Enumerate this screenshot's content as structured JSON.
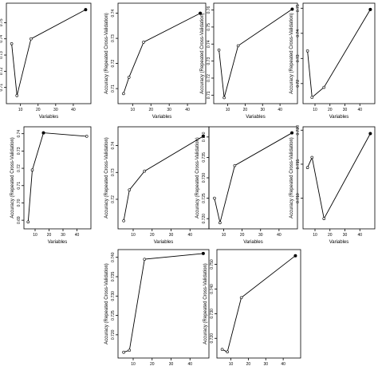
{
  "chart_data": [
    {
      "type": "line",
      "xlabel": "Variables",
      "ylabel": "Accuracy (Repeated Cross-Validation)",
      "x": [
        5,
        8,
        16,
        47
      ],
      "y": [
        0.737,
        0.705,
        0.74,
        0.758
      ],
      "best_index": 3,
      "xlim": [
        2,
        50
      ],
      "ylim": [
        0.7,
        0.762
      ],
      "xticks": [
        10,
        20,
        30,
        40
      ],
      "yticks": [
        0.71,
        0.72,
        0.73,
        0.74,
        0.75
      ]
    },
    {
      "type": "line",
      "xlabel": "Variables",
      "ylabel": "Accuracy (Repeated Cross-Validation)",
      "x": [
        5,
        8,
        16,
        47
      ],
      "y": [
        0.708,
        0.7145,
        0.7285,
        0.74
      ],
      "best_index": 3,
      "xlim": [
        2,
        50
      ],
      "ylim": [
        0.704,
        0.744
      ],
      "xticks": [
        10,
        20,
        30,
        40
      ],
      "yticks": [
        0.71,
        0.72,
        0.73,
        0.74
      ]
    },
    {
      "type": "line",
      "xlabel": "Variables",
      "ylabel": "Accuracy (Repeated Cross-Validation)",
      "x": [
        5,
        8,
        16,
        47
      ],
      "y": [
        0.7365,
        0.7085,
        0.739,
        0.7605
      ],
      "best_index": 3,
      "xlim": [
        2,
        50
      ],
      "ylim": [
        0.705,
        0.764
      ],
      "xticks": [
        10,
        20,
        30,
        40
      ],
      "yticks": [
        0.71,
        0.72,
        0.73,
        0.74,
        0.75,
        0.76
      ]
    },
    {
      "type": "line",
      "xlabel": "Variables",
      "ylabel": "Accuracy (Repeated Cross-Validation)",
      "x": [
        5,
        8,
        16,
        47
      ],
      "y": [
        0.733,
        0.7145,
        0.7185,
        0.7495
      ],
      "best_index": 3,
      "xlim": [
        2,
        50
      ],
      "ylim": [
        0.712,
        0.752
      ],
      "xticks": [
        10,
        20,
        30,
        40
      ],
      "yticks": [
        0.72,
        0.73,
        0.74,
        0.75
      ]
    },
    {
      "type": "line",
      "xlabel": "Variables",
      "ylabel": "Accuracy (Repeated Cross-Validation)",
      "x": [
        5,
        8,
        16,
        47
      ],
      "y": [
        0.689,
        0.719,
        0.7405,
        0.7385
      ],
      "best_index": 2,
      "xlim": [
        2,
        50
      ],
      "ylim": [
        0.685,
        0.744
      ],
      "xticks": [
        10,
        20,
        30,
        40
      ],
      "yticks": [
        0.69,
        0.7,
        0.71,
        0.72,
        0.73,
        0.74
      ]
    },
    {
      "type": "line",
      "xlabel": "Variables",
      "ylabel": "Accuracy (Repeated Cross-Validation)",
      "x": [
        5,
        8,
        16,
        47
      ],
      "y": [
        0.712,
        0.7235,
        0.7305,
        0.7435
      ],
      "best_index": 3,
      "xlim": [
        2,
        50
      ],
      "ylim": [
        0.709,
        0.747
      ],
      "xticks": [
        10,
        20,
        30,
        40
      ],
      "yticks": [
        0.72,
        0.73,
        0.74
      ]
    },
    {
      "type": "line",
      "xlabel": "Variables",
      "ylabel": "Accuracy (Repeated Cross-Validation)",
      "x": [
        5,
        8,
        16,
        47
      ],
      "y": [
        0.725,
        0.719,
        0.733,
        0.741
      ],
      "best_index": 3,
      "xlim": [
        2,
        50
      ],
      "ylim": [
        0.7175,
        0.7425
      ],
      "xticks": [
        10,
        20,
        30,
        40
      ],
      "yticks": [
        0.72,
        0.725,
        0.73,
        0.735,
        0.74
      ]
    },
    {
      "type": "line",
      "xlabel": "Variables",
      "ylabel": "Accuracy (Repeated Cross-Validation)",
      "x": [
        5,
        8,
        16,
        47
      ],
      "y": [
        0.7145,
        0.716,
        0.707,
        0.7195
      ],
      "best_index": 3,
      "xlim": [
        2,
        50
      ],
      "ylim": [
        0.7055,
        0.7205
      ],
      "xticks": [
        10,
        20,
        30,
        40
      ],
      "yticks": [
        0.71,
        0.715,
        0.72
      ]
    },
    {
      "type": "line",
      "xlabel": "Variables",
      "ylabel": "Accuracy (Repeated Cross-Validation)",
      "x": [
        5,
        8,
        16,
        47
      ],
      "y": [
        0.7155,
        0.716,
        0.7395,
        0.741
      ],
      "best_index": 3,
      "xlim": [
        2,
        50
      ],
      "ylim": [
        0.714,
        0.742
      ],
      "xticks": [
        10,
        20,
        30,
        40
      ],
      "yticks": [
        0.72,
        0.725,
        0.73,
        0.735,
        0.74
      ]
    },
    {
      "type": "line",
      "xlabel": "Variables",
      "ylabel": "Accuracy (Repeated Cross-Validation)",
      "x": [
        5,
        8,
        16,
        47
      ],
      "y": [
        0.7155,
        0.7145,
        0.7365,
        0.7535
      ],
      "best_index": 3,
      "xlim": [
        2,
        50
      ],
      "ylim": [
        0.712,
        0.756
      ],
      "xticks": [
        10,
        20,
        30,
        40
      ],
      "yticks": [
        0.72,
        0.73,
        0.74,
        0.75
      ]
    }
  ]
}
